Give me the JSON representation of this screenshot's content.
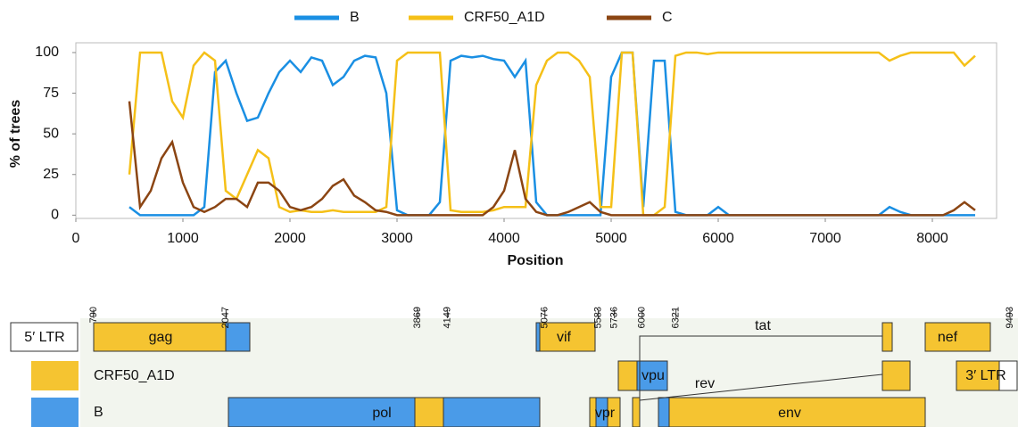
{
  "chart_data": {
    "type": "line",
    "x_label": "Position",
    "y_label": "% of trees",
    "x": [
      500,
      600,
      700,
      800,
      900,
      1000,
      1100,
      1200,
      1300,
      1400,
      1500,
      1600,
      1700,
      1800,
      1900,
      2000,
      2100,
      2200,
      2300,
      2400,
      2500,
      2600,
      2700,
      2800,
      2900,
      3000,
      3100,
      3200,
      3300,
      3400,
      3500,
      3600,
      3700,
      3800,
      3900,
      4000,
      4100,
      4200,
      4300,
      4400,
      4500,
      4600,
      4700,
      4800,
      4900,
      5000,
      5100,
      5200,
      5300,
      5400,
      5500,
      5600,
      5700,
      5800,
      5900,
      6000,
      6100,
      6200,
      6300,
      6400,
      6500,
      6600,
      6700,
      6800,
      6900,
      7000,
      7100,
      7200,
      7300,
      7400,
      7500,
      7600,
      7700,
      7800,
      7900,
      8000,
      8100,
      8200,
      8300,
      8400
    ],
    "series": [
      {
        "name": "B",
        "color": "#1a8fe3",
        "values": [
          5,
          0,
          0,
          0,
          0,
          0,
          0,
          5,
          88,
          95,
          75,
          58,
          60,
          75,
          88,
          95,
          88,
          97,
          95,
          80,
          85,
          95,
          98,
          97,
          75,
          3,
          0,
          0,
          0,
          8,
          95,
          98,
          97,
          98,
          96,
          95,
          85,
          95,
          8,
          0,
          0,
          0,
          0,
          0,
          0,
          85,
          100,
          100,
          5,
          95,
          95,
          2,
          0,
          0,
          0,
          5,
          0,
          0,
          0,
          0,
          0,
          0,
          0,
          0,
          0,
          0,
          0,
          0,
          0,
          0,
          0,
          5,
          2,
          0,
          0,
          0,
          0,
          0,
          0,
          0
        ]
      },
      {
        "name": "CRF50_A1D",
        "color": "#f5c018",
        "values": [
          25,
          100,
          100,
          100,
          70,
          60,
          92,
          100,
          95,
          15,
          10,
          25,
          40,
          35,
          5,
          2,
          3,
          2,
          2,
          3,
          2,
          2,
          2,
          2,
          5,
          95,
          100,
          100,
          100,
          100,
          3,
          2,
          2,
          2,
          3,
          5,
          5,
          5,
          80,
          95,
          100,
          100,
          95,
          85,
          5,
          5,
          100,
          100,
          0,
          0,
          5,
          98,
          100,
          100,
          99,
          100,
          100,
          100,
          100,
          100,
          100,
          100,
          100,
          100,
          100,
          100,
          100,
          100,
          100,
          100,
          100,
          95,
          98,
          100,
          100,
          100,
          100,
          100,
          92,
          98
        ]
      },
      {
        "name": "C",
        "color": "#8b4513",
        "values": [
          70,
          5,
          15,
          35,
          45,
          20,
          5,
          2,
          5,
          10,
          10,
          5,
          20,
          20,
          15,
          5,
          3,
          5,
          10,
          18,
          22,
          12,
          8,
          3,
          2,
          0,
          0,
          0,
          0,
          0,
          0,
          0,
          0,
          0,
          5,
          15,
          40,
          10,
          2,
          0,
          0,
          2,
          5,
          8,
          2,
          0,
          0,
          0,
          0,
          0,
          0,
          0,
          0,
          0,
          0,
          0,
          0,
          0,
          0,
          0,
          0,
          0,
          0,
          0,
          0,
          0,
          0,
          0,
          0,
          0,
          0,
          0,
          0,
          0,
          0,
          0,
          0,
          3,
          8,
          3
        ]
      }
    ],
    "xlim": [
      0,
      8600
    ],
    "xticks": [
      0,
      1000,
      2000,
      3000,
      4000,
      5000,
      6000,
      7000,
      8000
    ],
    "ylim": [
      -2,
      106
    ],
    "yticks": [
      0,
      25,
      50,
      75,
      100
    ]
  },
  "genome_map": {
    "breakpoints": [
      790,
      2047,
      3869,
      4149,
      5076,
      5583,
      5736,
      6000,
      6321,
      9493
    ],
    "genes": [
      "5′ LTR",
      "gag",
      "pol",
      "vif",
      "vpr",
      "tat",
      "vpu",
      "rev",
      "env",
      "nef",
      "3′ LTR"
    ],
    "legend": [
      {
        "label": "CRF50_A1D",
        "color": "#f5c431"
      },
      {
        "label": "B",
        "color": "#4a9be8"
      }
    ]
  }
}
